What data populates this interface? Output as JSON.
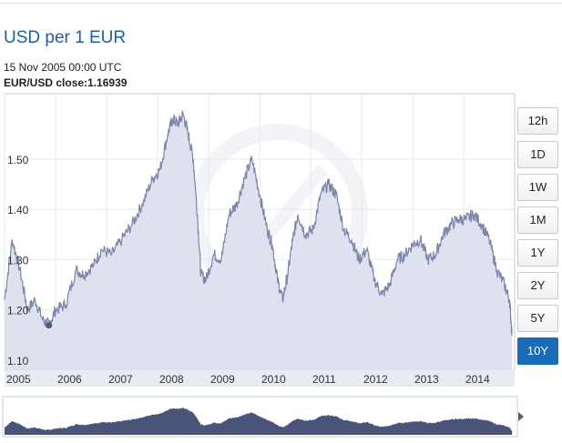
{
  "header": {
    "title": "USD per 1 EUR",
    "date": "15 Nov 2005 00:00 UTC",
    "close_label": "EUR/USD",
    "close_text": "close:",
    "close_value": "1.16939"
  },
  "range_buttons": [
    "12h",
    "1D",
    "1W",
    "1M",
    "1Y",
    "2Y",
    "5Y",
    "10Y"
  ],
  "active_range": "10Y",
  "colors": {
    "line": "#7b86aa",
    "fill": "#dfe2ee",
    "accent": "#1a6bb8",
    "navigator_fill": "#4a5479"
  },
  "chart_data": {
    "type": "area",
    "title": "USD per 1 EUR",
    "xlabel": "",
    "ylabel": "",
    "ylim": [
      1.08,
      1.63
    ],
    "xlim": [
      2005.0,
      2015.0
    ],
    "y_ticks": [
      "1.10",
      "1.20",
      "1.30",
      "1.40",
      "1.50"
    ],
    "x_ticks": [
      "2005",
      "2006",
      "2007",
      "2008",
      "2009",
      "2010",
      "2011",
      "2012",
      "2013",
      "2014"
    ],
    "grid": true,
    "highlight_point": {
      "x": 2005.87,
      "y": 1.16939
    },
    "series": [
      {
        "x": [
          2005.0,
          2005.15,
          2005.3,
          2005.45,
          2005.6,
          2005.75,
          2005.87,
          2006.0,
          2006.2,
          2006.4,
          2006.55,
          2006.75,
          2006.9,
          2007.1,
          2007.3,
          2007.5,
          2007.7,
          2007.9,
          2008.05,
          2008.2,
          2008.3,
          2008.4,
          2008.5,
          2008.6,
          2008.7,
          2008.78,
          2008.85,
          2008.95,
          2009.1,
          2009.25,
          2009.4,
          2009.55,
          2009.7,
          2009.85,
          2010.0,
          2010.15,
          2010.25,
          2010.35,
          2010.45,
          2010.55,
          2010.65,
          2010.75,
          2010.9,
          2011.05,
          2011.2,
          2011.35,
          2011.5,
          2011.65,
          2011.8,
          2011.95,
          2012.1,
          2012.25,
          2012.4,
          2012.55,
          2012.7,
          2012.85,
          2013.0,
          2013.15,
          2013.3,
          2013.45,
          2013.6,
          2013.75,
          2013.9,
          2014.05,
          2014.2,
          2014.35,
          2014.5,
          2014.65,
          2014.8,
          2014.9,
          2014.95
        ],
        "y": [
          1.22,
          1.34,
          1.28,
          1.2,
          1.22,
          1.18,
          1.17,
          1.2,
          1.21,
          1.28,
          1.27,
          1.29,
          1.32,
          1.31,
          1.34,
          1.37,
          1.41,
          1.46,
          1.48,
          1.55,
          1.58,
          1.57,
          1.59,
          1.55,
          1.5,
          1.39,
          1.27,
          1.26,
          1.31,
          1.3,
          1.39,
          1.41,
          1.46,
          1.5,
          1.43,
          1.36,
          1.33,
          1.26,
          1.22,
          1.27,
          1.34,
          1.39,
          1.35,
          1.36,
          1.43,
          1.45,
          1.43,
          1.36,
          1.34,
          1.3,
          1.32,
          1.26,
          1.23,
          1.25,
          1.3,
          1.31,
          1.33,
          1.34,
          1.3,
          1.31,
          1.35,
          1.37,
          1.38,
          1.38,
          1.39,
          1.37,
          1.34,
          1.28,
          1.25,
          1.22,
          1.15
        ]
      }
    ]
  }
}
